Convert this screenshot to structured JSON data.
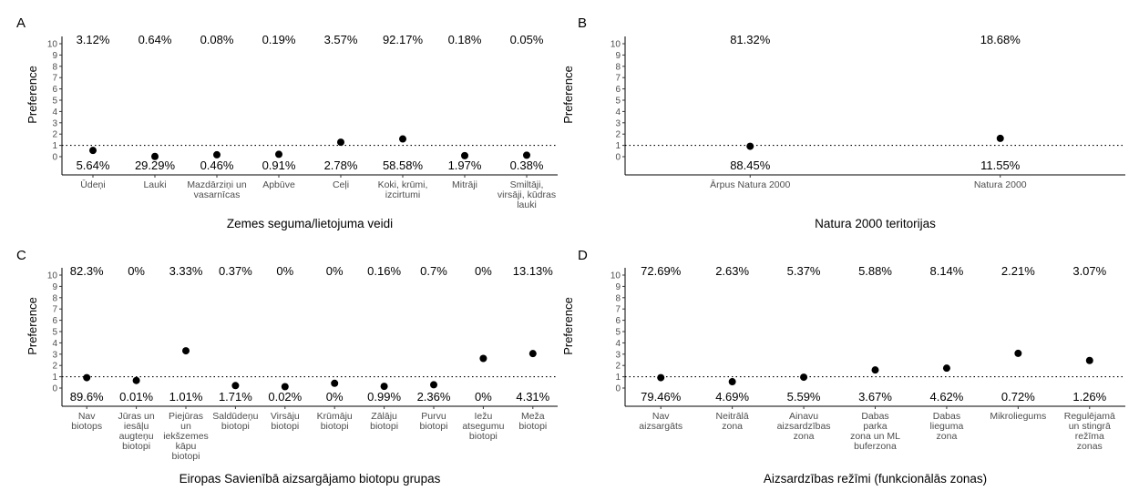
{
  "chart_data": [
    {
      "letter": "A",
      "type": "scatter",
      "ylabel": "Preference",
      "xlabel": "Zemes seguma/lietojuma veidi",
      "yticks": [
        "0",
        "1",
        "2",
        "3",
        "4",
        "5",
        "6",
        "7",
        "8",
        "9",
        "10"
      ],
      "ylim": [
        0,
        10
      ],
      "reference_line": 1,
      "categories": [
        {
          "label": [
            "Ūdeņi"
          ],
          "value": 0.55,
          "top": "3.12%",
          "bottom": "5.64%"
        },
        {
          "label": [
            "Lauki"
          ],
          "value": 0.02,
          "top": "0.64%",
          "bottom": "29.29%"
        },
        {
          "label": [
            "Mazdārziņi un",
            "vasarnīcas"
          ],
          "value": 0.17,
          "top": "0.08%",
          "bottom": "0.46%"
        },
        {
          "label": [
            "Apbūve"
          ],
          "value": 0.21,
          "top": "0.19%",
          "bottom": "0.91%"
        },
        {
          "label": [
            "Ceļi"
          ],
          "value": 1.28,
          "top": "3.57%",
          "bottom": "2.78%"
        },
        {
          "label": [
            "Koki, krūmi,",
            "izcirtumi"
          ],
          "value": 1.57,
          "top": "92.17%",
          "bottom": "58.58%"
        },
        {
          "label": [
            "Mitrāji"
          ],
          "value": 0.09,
          "top": "0.18%",
          "bottom": "1.97%"
        },
        {
          "label": [
            "Smiltāji,",
            "virsāji, kūdras",
            "lauki"
          ],
          "value": 0.13,
          "top": "0.05%",
          "bottom": "0.38%"
        }
      ]
    },
    {
      "letter": "B",
      "type": "scatter",
      "ylabel": "Preference",
      "xlabel": "Natura 2000 teritorijas",
      "yticks": [
        "0",
        "1",
        "2",
        "3",
        "4",
        "5",
        "6",
        "7",
        "8",
        "9",
        "10"
      ],
      "ylim": [
        0,
        10
      ],
      "reference_line": 1,
      "categories": [
        {
          "label": [
            "Ārpus Natura 2000"
          ],
          "value": 0.92,
          "top": "81.32%",
          "bottom": "88.45%"
        },
        {
          "label": [
            "Natura 2000"
          ],
          "value": 1.62,
          "top": "18.68%",
          "bottom": "11.55%"
        }
      ]
    },
    {
      "letter": "C",
      "type": "scatter",
      "ylabel": "Preference",
      "xlabel": "Eiropas Savienībā aizsargājamo biotopu grupas",
      "yticks": [
        "0",
        "1",
        "2",
        "3",
        "4",
        "5",
        "6",
        "7",
        "8",
        "9",
        "10"
      ],
      "ylim": [
        0,
        10
      ],
      "reference_line": 1,
      "categories": [
        {
          "label": [
            "Nav",
            "biotops"
          ],
          "value": 0.92,
          "top": "82.3%",
          "bottom": "89.6%"
        },
        {
          "label": [
            "Jūras un",
            "iesāļu",
            "augteņu",
            "biotopi"
          ],
          "value": 0.67,
          "top": "0%",
          "bottom": "0.01%"
        },
        {
          "label": [
            "Piejūras",
            "un",
            "iekšzemes",
            "kāpu",
            "biotopi"
          ],
          "value": 3.3,
          "top": "3.33%",
          "bottom": "1.01%"
        },
        {
          "label": [
            "Saldūdeņu",
            "biotopi"
          ],
          "value": 0.22,
          "top": "0.37%",
          "bottom": "1.71%"
        },
        {
          "label": [
            "Virsāju",
            "biotopi"
          ],
          "value": 0.12,
          "top": "0%",
          "bottom": "0.02%"
        },
        {
          "label": [
            "Krūmāju",
            "biotopi"
          ],
          "value": 0.42,
          "top": "0%",
          "bottom": "0%"
        },
        {
          "label": [
            "Zālāju",
            "biotopi"
          ],
          "value": 0.15,
          "top": "0.16%",
          "bottom": "0.99%"
        },
        {
          "label": [
            "Purvu",
            "biotopi"
          ],
          "value": 0.29,
          "top": "0.7%",
          "bottom": "2.36%"
        },
        {
          "label": [
            "Iežu",
            "atsegumu",
            "biotopi"
          ],
          "value": 2.62,
          "top": "0%",
          "bottom": "0%"
        },
        {
          "label": [
            "Meža",
            "biotopi"
          ],
          "value": 3.05,
          "top": "13.13%",
          "bottom": "4.31%"
        }
      ]
    },
    {
      "letter": "D",
      "type": "scatter",
      "ylabel": "Preference",
      "xlabel": "Aizsardzības režīmi (funkcionālās zonas)",
      "yticks": [
        "0",
        "1",
        "2",
        "3",
        "4",
        "5",
        "6",
        "7",
        "8",
        "9",
        "10"
      ],
      "ylim": [
        0,
        10
      ],
      "reference_line": 1,
      "categories": [
        {
          "label": [
            "Nav",
            "aizsargāts"
          ],
          "value": 0.92,
          "top": "72.69%",
          "bottom": "79.46%"
        },
        {
          "label": [
            "Neitrālā",
            "zona"
          ],
          "value": 0.56,
          "top": "2.63%",
          "bottom": "4.69%"
        },
        {
          "label": [
            "Ainavu",
            "aizsardzības",
            "zona"
          ],
          "value": 0.96,
          "top": "5.37%",
          "bottom": "5.59%"
        },
        {
          "label": [
            "Dabas",
            "parka",
            "zona un ML",
            "buferzona"
          ],
          "value": 1.6,
          "top": "5.88%",
          "bottom": "3.67%"
        },
        {
          "label": [
            "Dabas",
            "lieguma",
            "zona"
          ],
          "value": 1.76,
          "top": "8.14%",
          "bottom": "4.62%"
        },
        {
          "label": [
            "Mikroliegums"
          ],
          "value": 3.07,
          "top": "2.21%",
          "bottom": "0.72%"
        },
        {
          "label": [
            "Regulējamā",
            "un stingrā",
            "režīma",
            "zonas"
          ],
          "value": 2.44,
          "top": "3.07%",
          "bottom": "1.26%"
        }
      ]
    }
  ]
}
